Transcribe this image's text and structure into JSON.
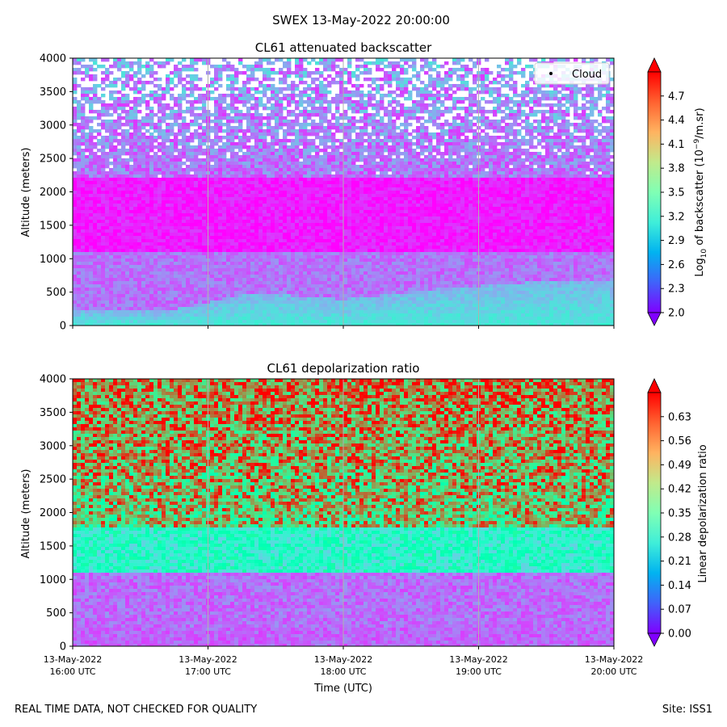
{
  "figure": {
    "suptitle": "SWEX 13-May-2022 20:00:00",
    "footer_left": "REAL TIME DATA, NOT CHECKED FOR QUALITY",
    "footer_right": "Site: ISS1",
    "xlabel": "Time (UTC)",
    "time_tick_dates": [
      "13-May-2022",
      "13-May-2022",
      "13-May-2022",
      "13-May-2022",
      "13-May-2022"
    ],
    "time_tick_times": [
      "16:00 UTC",
      "17:00 UTC",
      "18:00 UTC",
      "19:00 UTC",
      "20:00 UTC"
    ]
  },
  "chart_data": [
    {
      "type": "heatmap",
      "title": "CL61 attenuated backscatter",
      "xlabel": "",
      "ylabel": "Altitude (meters)",
      "x_range": [
        "2022-05-13 16:00",
        "2022-05-13 20:00"
      ],
      "ylim": [
        0,
        4000
      ],
      "yticks": [
        0,
        500,
        1000,
        1500,
        2000,
        2500,
        3000,
        3500,
        4000
      ],
      "grid": "vertical",
      "legend": {
        "label": "Cloud",
        "position": "top-right"
      },
      "colorbar": {
        "label_pre": "Log",
        "label_sub": "10",
        "label_mid": " of backscatter (10",
        "label_sup": "−9",
        "label_post": "/m.sr)",
        "range": [
          2.0,
          5.0
        ],
        "ticks": [
          "2.0",
          "2.3",
          "2.6",
          "2.9",
          "3.2",
          "3.5",
          "3.8",
          "4.1",
          "4.4",
          "4.7"
        ],
        "extend": "both",
        "colormap": "rainbow"
      },
      "structure": {
        "near_surface_layer_top_m": [
          250,
          220,
          500,
          400,
          550,
          650,
          700
        ],
        "surface_layer_value": 3.1,
        "upper_air_value": 2.1,
        "upper_noise_starts_m": 2200
      }
    },
    {
      "type": "heatmap",
      "title": "CL61 depolarization ratio",
      "xlabel": "Time (UTC)",
      "ylabel": "Altitude (meters)",
      "x_range": [
        "2022-05-13 16:00",
        "2022-05-13 20:00"
      ],
      "ylim": [
        0,
        4000
      ],
      "yticks": [
        0,
        500,
        1000,
        1500,
        2000,
        2500,
        3000,
        3500,
        4000
      ],
      "grid": "vertical",
      "colorbar": {
        "label": "Linear depolarization ratio",
        "range": [
          0.0,
          0.7
        ],
        "ticks": [
          "0.00",
          "0.07",
          "0.14",
          "0.21",
          "0.28",
          "0.35",
          "0.42",
          "0.49",
          "0.56",
          "0.63"
        ],
        "extend": "both",
        "colormap": "rainbow"
      },
      "structure": {
        "low_layer_value": 0.1,
        "mid_layer_value": 0.3,
        "upper_value": 0.5
      }
    }
  ]
}
